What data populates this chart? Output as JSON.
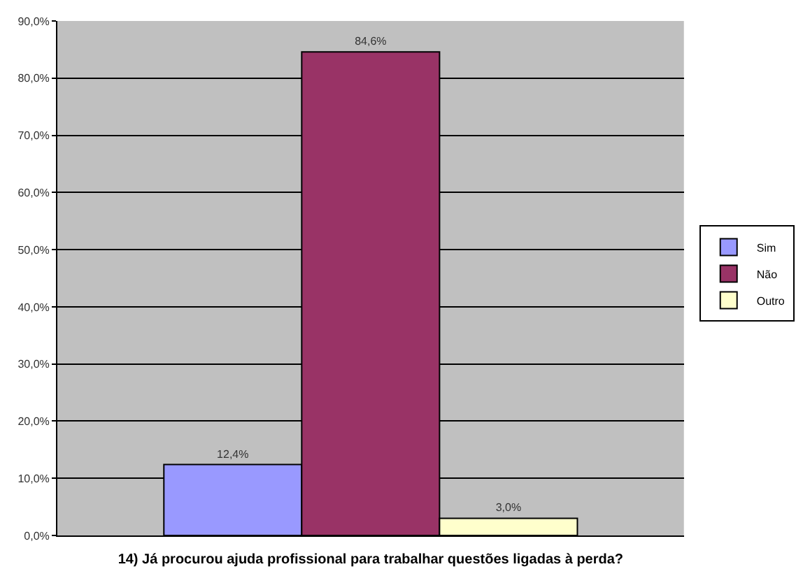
{
  "chart_data": {
    "type": "bar",
    "xlabel": "14) Já procurou ajuda profissional para trabalhar questões ligadas à perda?",
    "categories": [
      null
    ],
    "series": [
      {
        "name": "Sim",
        "color": "#9999ff",
        "values": [
          12.4
        ],
        "value_labels": [
          "12,4%"
        ]
      },
      {
        "name": "Não",
        "color": "#993366",
        "values": [
          84.6
        ],
        "value_labels": [
          "84,6%"
        ]
      },
      {
        "name": "Outro",
        "color": "#ffffcc",
        "values": [
          3.0
        ],
        "value_labels": [
          "3,0%"
        ]
      }
    ],
    "ylim": [
      0,
      90
    ],
    "yticks": [
      {
        "value": 0,
        "label": "0,0%"
      },
      {
        "value": 10,
        "label": "10,0%"
      },
      {
        "value": 20,
        "label": "20,0%"
      },
      {
        "value": 30,
        "label": "30,0%"
      },
      {
        "value": 40,
        "label": "40,0%"
      },
      {
        "value": 50,
        "label": "50,0%"
      },
      {
        "value": 60,
        "label": "60,0%"
      },
      {
        "value": 70,
        "label": "70,0%"
      },
      {
        "value": 80,
        "label": "80,0%"
      },
      {
        "value": 90,
        "label": "90,0%"
      }
    ],
    "grid": "y",
    "legend": "right"
  }
}
